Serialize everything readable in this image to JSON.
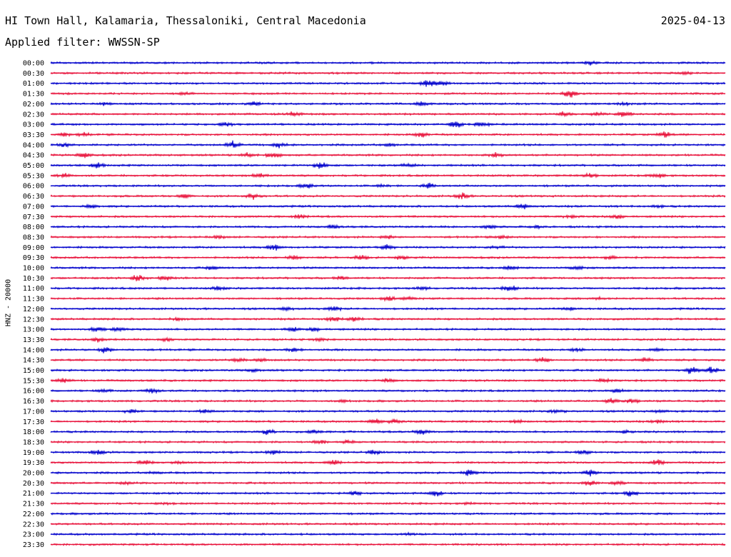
{
  "header": {
    "station": "HI Town Hall, Kalamaria, Thessaloniki, Central Macedonia",
    "date": "2025-04-13",
    "filter": "Applied filter: WWSSN-SP"
  },
  "colors": {
    "even_trace": "#0000cc",
    "odd_trace": "#e8113a",
    "background": "#ffffff",
    "text": "#000000"
  },
  "chart_data": {
    "type": "line",
    "title": "HI Town Hall, Kalamaria, Thessaloniki, Central Macedonia",
    "ylabel": "HNZ - 20000",
    "xlabel": "",
    "rows": [
      {
        "label": "00:00",
        "color": "#0000cc",
        "bursts": [
          [
            0.8,
            0.5
          ]
        ]
      },
      {
        "label": "00:30",
        "color": "#e8113a",
        "bursts": [
          [
            0.94,
            0.4
          ]
        ]
      },
      {
        "label": "01:00",
        "color": "#0000cc",
        "bursts": [
          [
            0.56,
            1.0
          ],
          [
            0.58,
            0.6
          ]
        ]
      },
      {
        "label": "01:30",
        "color": "#e8113a",
        "bursts": [
          [
            0.77,
            1.0
          ],
          [
            0.2,
            0.3
          ]
        ]
      },
      {
        "label": "02:00",
        "color": "#0000cc",
        "bursts": [
          [
            0.3,
            0.6
          ],
          [
            0.55,
            0.6
          ],
          [
            0.85,
            0.4
          ],
          [
            0.08,
            0.3
          ]
        ]
      },
      {
        "label": "02:30",
        "color": "#e8113a",
        "bursts": [
          [
            0.36,
            0.6
          ],
          [
            0.76,
            0.6
          ],
          [
            0.81,
            0.5
          ],
          [
            0.85,
            0.8
          ]
        ]
      },
      {
        "label": "03:00",
        "color": "#0000cc",
        "bursts": [
          [
            0.26,
            0.5
          ],
          [
            0.6,
            0.9
          ],
          [
            0.64,
            0.6
          ]
        ]
      },
      {
        "label": "03:30",
        "color": "#e8113a",
        "bursts": [
          [
            0.02,
            0.5
          ],
          [
            0.05,
            0.4
          ],
          [
            0.55,
            0.7
          ],
          [
            0.91,
            0.8
          ]
        ]
      },
      {
        "label": "04:00",
        "color": "#0000cc",
        "bursts": [
          [
            0.27,
            0.9
          ],
          [
            0.34,
            0.7
          ],
          [
            0.02,
            0.5
          ],
          [
            0.5,
            0.4
          ]
        ]
      },
      {
        "label": "04:30",
        "color": "#e8113a",
        "bursts": [
          [
            0.05,
            0.7
          ],
          [
            0.33,
            0.8
          ],
          [
            0.29,
            0.5
          ],
          [
            0.66,
            0.5
          ]
        ]
      },
      {
        "label": "05:00",
        "color": "#0000cc",
        "bursts": [
          [
            0.07,
            0.7
          ],
          [
            0.4,
            0.9
          ],
          [
            0.53,
            0.4
          ]
        ]
      },
      {
        "label": "05:30",
        "color": "#e8113a",
        "bursts": [
          [
            0.02,
            0.5
          ],
          [
            0.31,
            0.6
          ],
          [
            0.8,
            0.5
          ],
          [
            0.9,
            0.6
          ]
        ]
      },
      {
        "label": "06:00",
        "color": "#0000cc",
        "bursts": [
          [
            0.38,
            0.5
          ],
          [
            0.56,
            0.6
          ],
          [
            0.49,
            0.3
          ]
        ]
      },
      {
        "label": "06:30",
        "color": "#e8113a",
        "bursts": [
          [
            0.2,
            0.5
          ],
          [
            0.3,
            0.7
          ],
          [
            0.61,
            0.8
          ]
        ]
      },
      {
        "label": "07:00",
        "color": "#0000cc",
        "bursts": [
          [
            0.06,
            0.5
          ],
          [
            0.7,
            0.7
          ],
          [
            0.9,
            0.3
          ]
        ]
      },
      {
        "label": "07:30",
        "color": "#e8113a",
        "bursts": [
          [
            0.37,
            0.6
          ],
          [
            0.77,
            0.4
          ],
          [
            0.84,
            0.4
          ]
        ]
      },
      {
        "label": "08:00",
        "color": "#0000cc",
        "bursts": [
          [
            0.42,
            0.6
          ],
          [
            0.65,
            0.5
          ],
          [
            0.72,
            0.4
          ]
        ]
      },
      {
        "label": "08:30",
        "color": "#e8113a",
        "bursts": [
          [
            0.25,
            0.4
          ],
          [
            0.5,
            0.5
          ],
          [
            0.67,
            0.3
          ]
        ]
      },
      {
        "label": "09:00",
        "color": "#0000cc",
        "bursts": [
          [
            0.33,
            0.8
          ],
          [
            0.5,
            0.7
          ],
          [
            0.66,
            0.3
          ]
        ]
      },
      {
        "label": "09:30",
        "color": "#e8113a",
        "bursts": [
          [
            0.36,
            0.6
          ],
          [
            0.46,
            0.6
          ],
          [
            0.52,
            0.5
          ],
          [
            0.83,
            0.5
          ]
        ]
      },
      {
        "label": "10:00",
        "color": "#0000cc",
        "bursts": [
          [
            0.24,
            0.5
          ],
          [
            0.68,
            0.5
          ],
          [
            0.78,
            0.4
          ]
        ]
      },
      {
        "label": "10:30",
        "color": "#e8113a",
        "bursts": [
          [
            0.13,
            0.8
          ],
          [
            0.17,
            0.5
          ],
          [
            0.43,
            0.4
          ]
        ]
      },
      {
        "label": "11:00",
        "color": "#0000cc",
        "bursts": [
          [
            0.25,
            0.5
          ],
          [
            0.68,
            0.9
          ],
          [
            0.55,
            0.4
          ]
        ]
      },
      {
        "label": "11:30",
        "color": "#e8113a",
        "bursts": [
          [
            0.5,
            0.6
          ],
          [
            0.53,
            0.5
          ],
          [
            0.81,
            0.3
          ]
        ]
      },
      {
        "label": "12:00",
        "color": "#0000cc",
        "bursts": [
          [
            0.35,
            0.5
          ],
          [
            0.42,
            0.5
          ],
          [
            0.77,
            0.4
          ]
        ]
      },
      {
        "label": "12:30",
        "color": "#e8113a",
        "bursts": [
          [
            0.19,
            0.4
          ],
          [
            0.42,
            0.7
          ],
          [
            0.45,
            0.6
          ]
        ]
      },
      {
        "label": "13:00",
        "color": "#0000cc",
        "bursts": [
          [
            0.07,
            0.6
          ],
          [
            0.1,
            0.4
          ],
          [
            0.36,
            0.5
          ],
          [
            0.39,
            0.4
          ]
        ]
      },
      {
        "label": "13:30",
        "color": "#e8113a",
        "bursts": [
          [
            0.07,
            0.6
          ],
          [
            0.17,
            0.5
          ],
          [
            0.4,
            0.3
          ]
        ]
      },
      {
        "label": "14:00",
        "color": "#0000cc",
        "bursts": [
          [
            0.08,
            0.8
          ],
          [
            0.36,
            0.5
          ],
          [
            0.78,
            0.4
          ],
          [
            0.9,
            0.3
          ]
        ]
      },
      {
        "label": "14:30",
        "color": "#e8113a",
        "bursts": [
          [
            0.28,
            0.6
          ],
          [
            0.31,
            0.4
          ],
          [
            0.73,
            0.7
          ],
          [
            0.88,
            0.6
          ]
        ]
      },
      {
        "label": "15:00",
        "color": "#0000cc",
        "bursts": [
          [
            0.95,
            1.0
          ],
          [
            0.98,
            0.9
          ],
          [
            0.3,
            0.3
          ]
        ]
      },
      {
        "label": "15:30",
        "color": "#e8113a",
        "bursts": [
          [
            0.02,
            0.6
          ],
          [
            0.5,
            0.6
          ],
          [
            0.82,
            0.6
          ]
        ]
      },
      {
        "label": "16:00",
        "color": "#0000cc",
        "bursts": [
          [
            0.15,
            0.7
          ],
          [
            0.08,
            0.4
          ],
          [
            0.84,
            0.5
          ]
        ]
      },
      {
        "label": "16:30",
        "color": "#e8113a",
        "bursts": [
          [
            0.83,
            0.7
          ],
          [
            0.86,
            0.6
          ],
          [
            0.43,
            0.3
          ]
        ]
      },
      {
        "label": "17:00",
        "color": "#0000cc",
        "bursts": [
          [
            0.12,
            0.4
          ],
          [
            0.23,
            0.4
          ],
          [
            0.75,
            0.5
          ],
          [
            0.9,
            0.4
          ]
        ]
      },
      {
        "label": "17:30",
        "color": "#e8113a",
        "bursts": [
          [
            0.48,
            0.6
          ],
          [
            0.51,
            0.5
          ],
          [
            0.69,
            0.4
          ],
          [
            0.9,
            0.5
          ]
        ]
      },
      {
        "label": "18:00",
        "color": "#0000cc",
        "bursts": [
          [
            0.32,
            0.7
          ],
          [
            0.55,
            0.8
          ],
          [
            0.39,
            0.4
          ],
          [
            0.85,
            0.4
          ]
        ]
      },
      {
        "label": "18:30",
        "color": "#e8113a",
        "bursts": [
          [
            0.4,
            0.5
          ],
          [
            0.44,
            0.4
          ]
        ]
      },
      {
        "label": "19:00",
        "color": "#0000cc",
        "bursts": [
          [
            0.07,
            0.7
          ],
          [
            0.33,
            0.5
          ],
          [
            0.48,
            0.6
          ],
          [
            0.79,
            0.5
          ]
        ]
      },
      {
        "label": "19:30",
        "color": "#e8113a",
        "bursts": [
          [
            0.14,
            0.6
          ],
          [
            0.19,
            0.4
          ],
          [
            0.42,
            0.7
          ],
          [
            0.9,
            0.8
          ]
        ]
      },
      {
        "label": "20:00",
        "color": "#0000cc",
        "bursts": [
          [
            0.62,
            0.8
          ],
          [
            0.8,
            0.8
          ],
          [
            0.15,
            0.3
          ]
        ]
      },
      {
        "label": "20:30",
        "color": "#e8113a",
        "bursts": [
          [
            0.8,
            0.6
          ],
          [
            0.84,
            0.5
          ],
          [
            0.11,
            0.3
          ]
        ]
      },
      {
        "label": "21:00",
        "color": "#0000cc",
        "bursts": [
          [
            0.45,
            0.5
          ],
          [
            0.57,
            0.8
          ],
          [
            0.86,
            0.8
          ]
        ]
      },
      {
        "label": "21:30",
        "color": "#e8113a",
        "bursts": [
          [
            0.17,
            0.2
          ],
          [
            0.62,
            0.2
          ]
        ]
      },
      {
        "label": "22:00",
        "color": "#0000cc",
        "bursts": []
      },
      {
        "label": "22:30",
        "color": "#e8113a",
        "bursts": []
      },
      {
        "label": "23:00",
        "color": "#0000cc",
        "bursts": [
          [
            0.53,
            0.2
          ]
        ]
      },
      {
        "label": "23:30",
        "color": "#e8113a",
        "bursts": []
      }
    ],
    "grid": false,
    "legend": "none"
  }
}
